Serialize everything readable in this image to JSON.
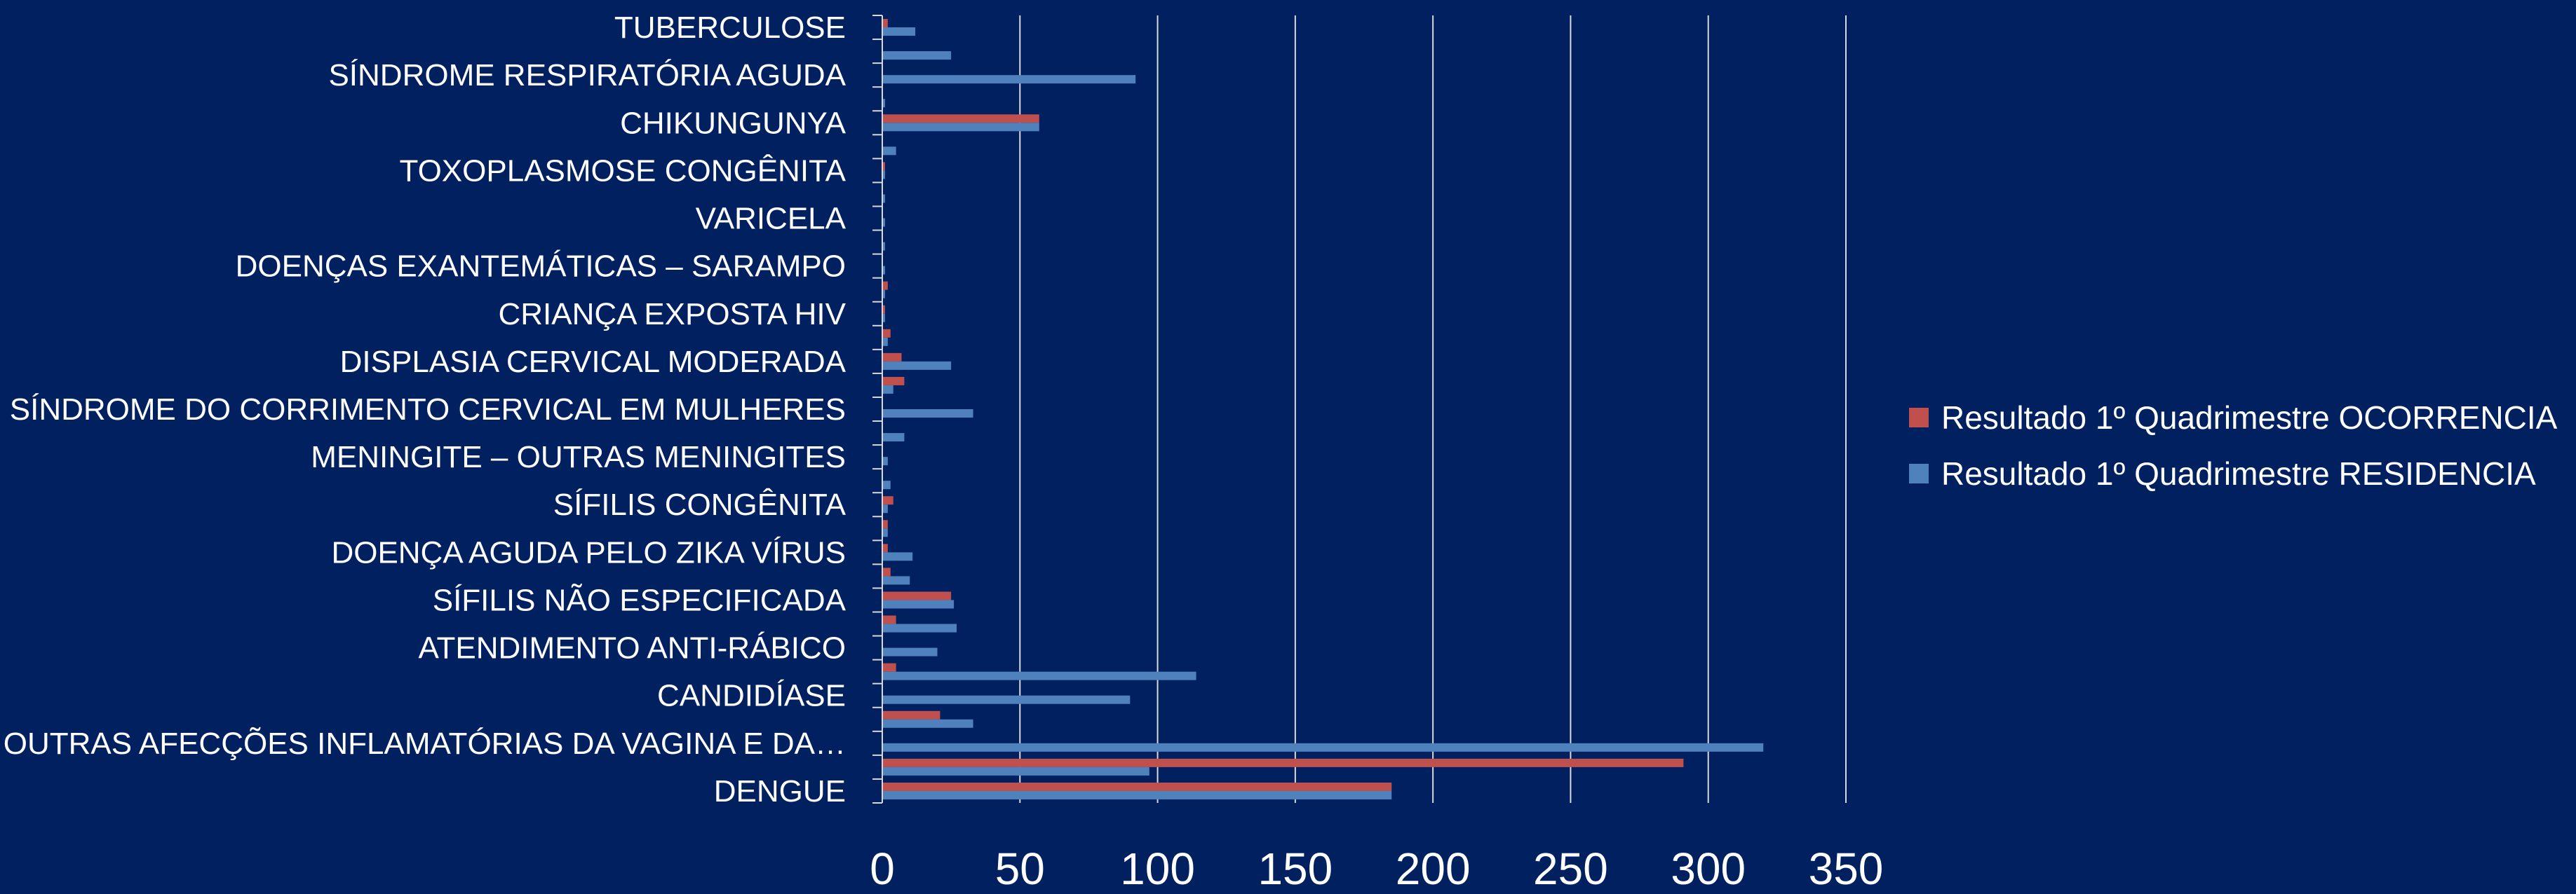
{
  "chart_data": {
    "type": "bar",
    "orientation": "horizontal",
    "title": "",
    "xlabel": "",
    "ylabel": "",
    "xlim": [
      0,
      350
    ],
    "x_ticks": [
      "0",
      "50",
      "100",
      "150",
      "200",
      "250",
      "300",
      "350"
    ],
    "grid": "vertical",
    "legend_position": "right",
    "categories": [
      "DENGUE",
      "",
      "OUTRAS AFECÇÕES INFLAMATÓRIAS DA VAGINA E DA…",
      "",
      "CANDIDÍASE",
      "",
      "ATENDIMENTO ANTI-RÁBICO",
      "",
      "SÍFILIS NÃO ESPECIFICADA",
      "",
      "DOENÇA AGUDA PELO ZIKA VÍRUS",
      "",
      "SÍFILIS CONGÊNITA",
      "",
      "MENINGITE – OUTRAS MENINGITES",
      "",
      "SÍNDROME DO CORRIMENTO CERVICAL EM MULHERES",
      "",
      "DISPLASIA CERVICAL MODERADA",
      "",
      "CRIANÇA EXPOSTA HIV",
      "",
      "DOENÇAS EXANTEMÁTICAS – SARAMPO",
      "",
      "VARICELA",
      "",
      "TOXOPLASMOSE CONGÊNITA",
      "",
      "CHIKUNGUNYA",
      "",
      "SÍNDROME RESPIRATÓRIA AGUDA",
      "",
      "TUBERCULOSE"
    ],
    "series": [
      {
        "name": "Resultado 1º Quadrimestre OCORRENCIA",
        "color": "#C0504D",
        "values": [
          185,
          291,
          0,
          21,
          0,
          5,
          0,
          5,
          25,
          3,
          2,
          2,
          4,
          0,
          0,
          0,
          0,
          8,
          7,
          3,
          1,
          2,
          0,
          0,
          0,
          0,
          1,
          0,
          57,
          0,
          0,
          0,
          2
        ]
      },
      {
        "name": "Resultado 1º Quadrimestre RESIDENCIA",
        "color": "#4F81BD",
        "values": [
          185,
          97,
          320,
          33,
          90,
          114,
          20,
          27,
          26,
          10,
          11,
          2,
          2,
          3,
          2,
          8,
          33,
          4,
          25,
          2,
          1,
          1,
          1,
          1,
          1,
          1,
          1,
          5,
          57,
          1,
          92,
          25,
          12
        ]
      }
    ]
  }
}
